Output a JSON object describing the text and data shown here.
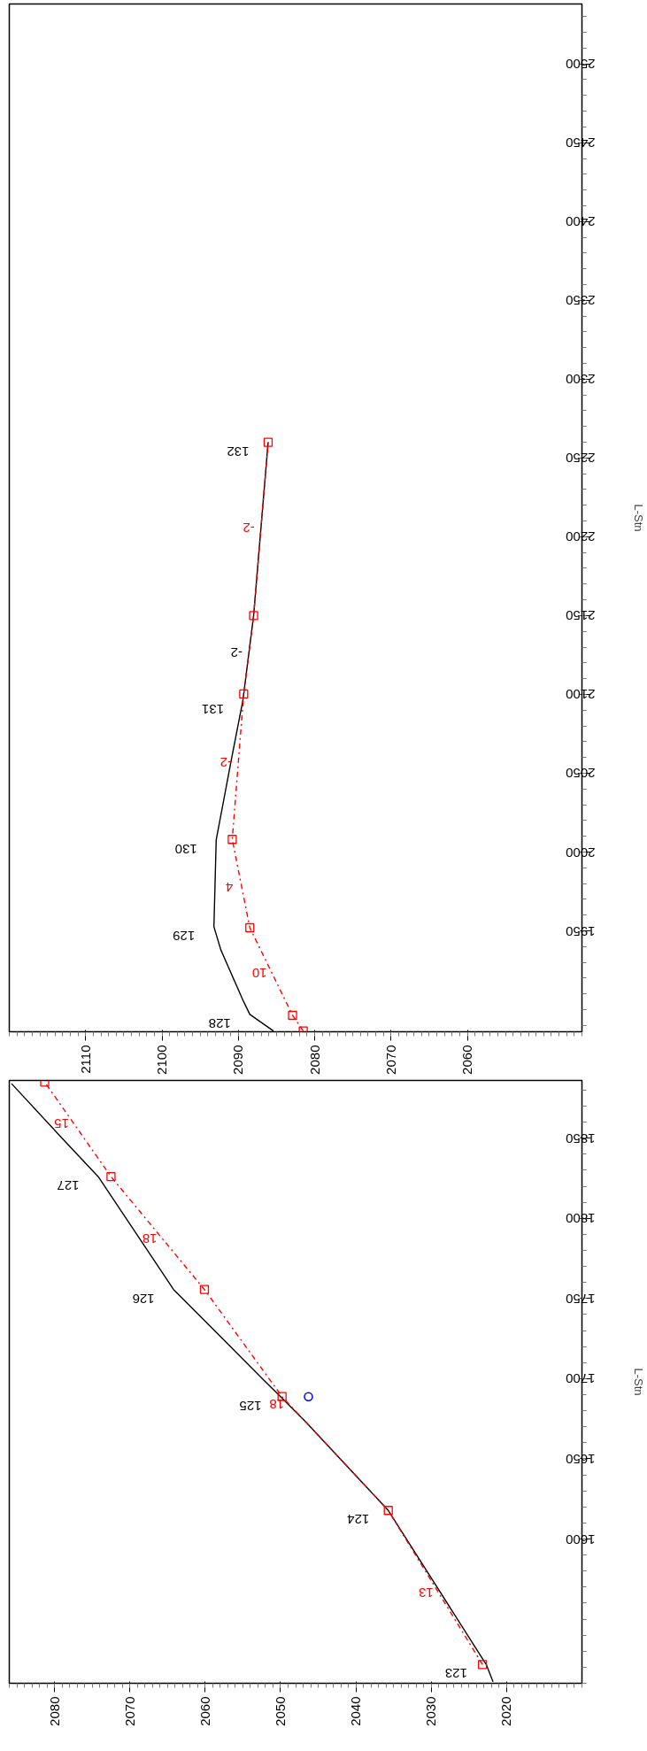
{
  "chart_data": [
    {
      "type": "line",
      "orientation": "horizontal",
      "ylabel": "L-Stn",
      "xlim": [
        2120,
        2045
      ],
      "ylim": [
        1886,
        2538
      ],
      "xticks": [
        2110,
        2100,
        2090,
        2080,
        2070,
        2060
      ],
      "yticks": [
        1950,
        2000,
        2050,
        2100,
        2150,
        2200,
        2250,
        2300,
        2350,
        2400,
        2450,
        2500
      ],
      "grid": false,
      "series": [
        {
          "color": "#000000",
          "line_style": "solid",
          "marker": "none",
          "x": [
            1886.5,
            1897,
            1905,
            1938,
            1952.6,
            2007.8,
            2059,
            2096.4,
            2150,
            2260
          ],
          "values": [
            2085.4,
            2088.5,
            2089.3,
            2092.3,
            2093.2,
            2092.9,
            2090.9,
            2089.4,
            2088,
            2086.1
          ]
        },
        {
          "color": "#ff0000",
          "line_style": "dashed",
          "marker": "square",
          "x": [
            1886.5,
            1896.4,
            1952,
            2008,
            2100.3,
            2150,
            2260
          ],
          "values": [
            2081.5,
            2082.9,
            2088.5,
            2090.8,
            2089.3,
            2088,
            2086.1
          ]
        }
      ],
      "annotations": [
        {
          "text": "128",
          "x": 2088.5,
          "y": 1897
        },
        {
          "text": "129",
          "x": 2093.2,
          "y": 1952.6
        },
        {
          "text": "130",
          "x": 2092.9,
          "y": 2007.8
        },
        {
          "text": "131",
          "x": 2089.4,
          "y": 2096.4
        },
        {
          "text": "132",
          "x": 2086.1,
          "y": 2260
        },
        {
          "text": "10",
          "x": 2085.6,
          "y": 1923.4
        },
        {
          "text": "4",
          "x": 2089.55,
          "y": 1977.6
        },
        {
          "text": "-2",
          "x": 2090.0,
          "y": 2056.8
        },
        {
          "text": "-2",
          "x": 2088.6,
          "y": 2126.6
        },
        {
          "text": "-2",
          "x": 2087.0,
          "y": 2205.7
        }
      ]
    },
    {
      "type": "line",
      "orientation": "horizontal",
      "ylabel": "L-Stn",
      "xlim": [
        2086,
        2010
      ],
      "ylim": [
        1510,
        1886
      ],
      "xticks": [
        2080,
        2070,
        2060,
        2050,
        2040,
        2030,
        2020
      ],
      "yticks": [
        1600,
        1650,
        1700,
        1750,
        1800,
        1850
      ],
      "grid": false,
      "series": [
        {
          "color": "#000000",
          "line_style": "solid",
          "marker": "none",
          "x": [
            1511,
            1521.7,
            1617.8,
            1672.7,
            1688.8,
            1699,
            1755.6,
            1826,
            1850,
            1884
          ],
          "values": [
            2021.8,
            2022.7,
            2035.7,
            2046.6,
            2050.0,
            2052.2,
            2064.2,
            2074.2,
            2079,
            2085.7
          ]
        },
        {
          "color": "#ff0000",
          "line_style": "dashed",
          "marker": "square",
          "x": [
            1521.7,
            1617.8,
            1688.8,
            1755.6,
            1826,
            1885
          ],
          "values": [
            2023.2,
            2035.7,
            2049.8,
            2060.1,
            2072.5,
            2081.3
          ]
        },
        {
          "type": "scatter",
          "color": "#0000ff",
          "marker": "circle",
          "x": [
            1688.8
          ],
          "values": [
            2046.3
          ]
        }
      ],
      "annotations": [
        {
          "text": "123",
          "x": 2022.7,
          "y": 1521.7
        },
        {
          "text": "124",
          "x": 2035.7,
          "y": 1617.8
        },
        {
          "text": "125",
          "x": 2050.0,
          "y": 1688.8
        },
        {
          "text": "126",
          "x": 2064.2,
          "y": 1755.6
        },
        {
          "text": "127",
          "x": 2074.2,
          "y": 1826
        },
        {
          "text": "13",
          "x": 2029.04,
          "y": 1566.6
        },
        {
          "text": "18",
          "x": 2048.85,
          "y": 1684
        },
        {
          "text": "18",
          "x": 2065.72,
          "y": 1787.5
        },
        {
          "text": "15",
          "x": 2077.42,
          "y": 1859
        }
      ]
    }
  ]
}
